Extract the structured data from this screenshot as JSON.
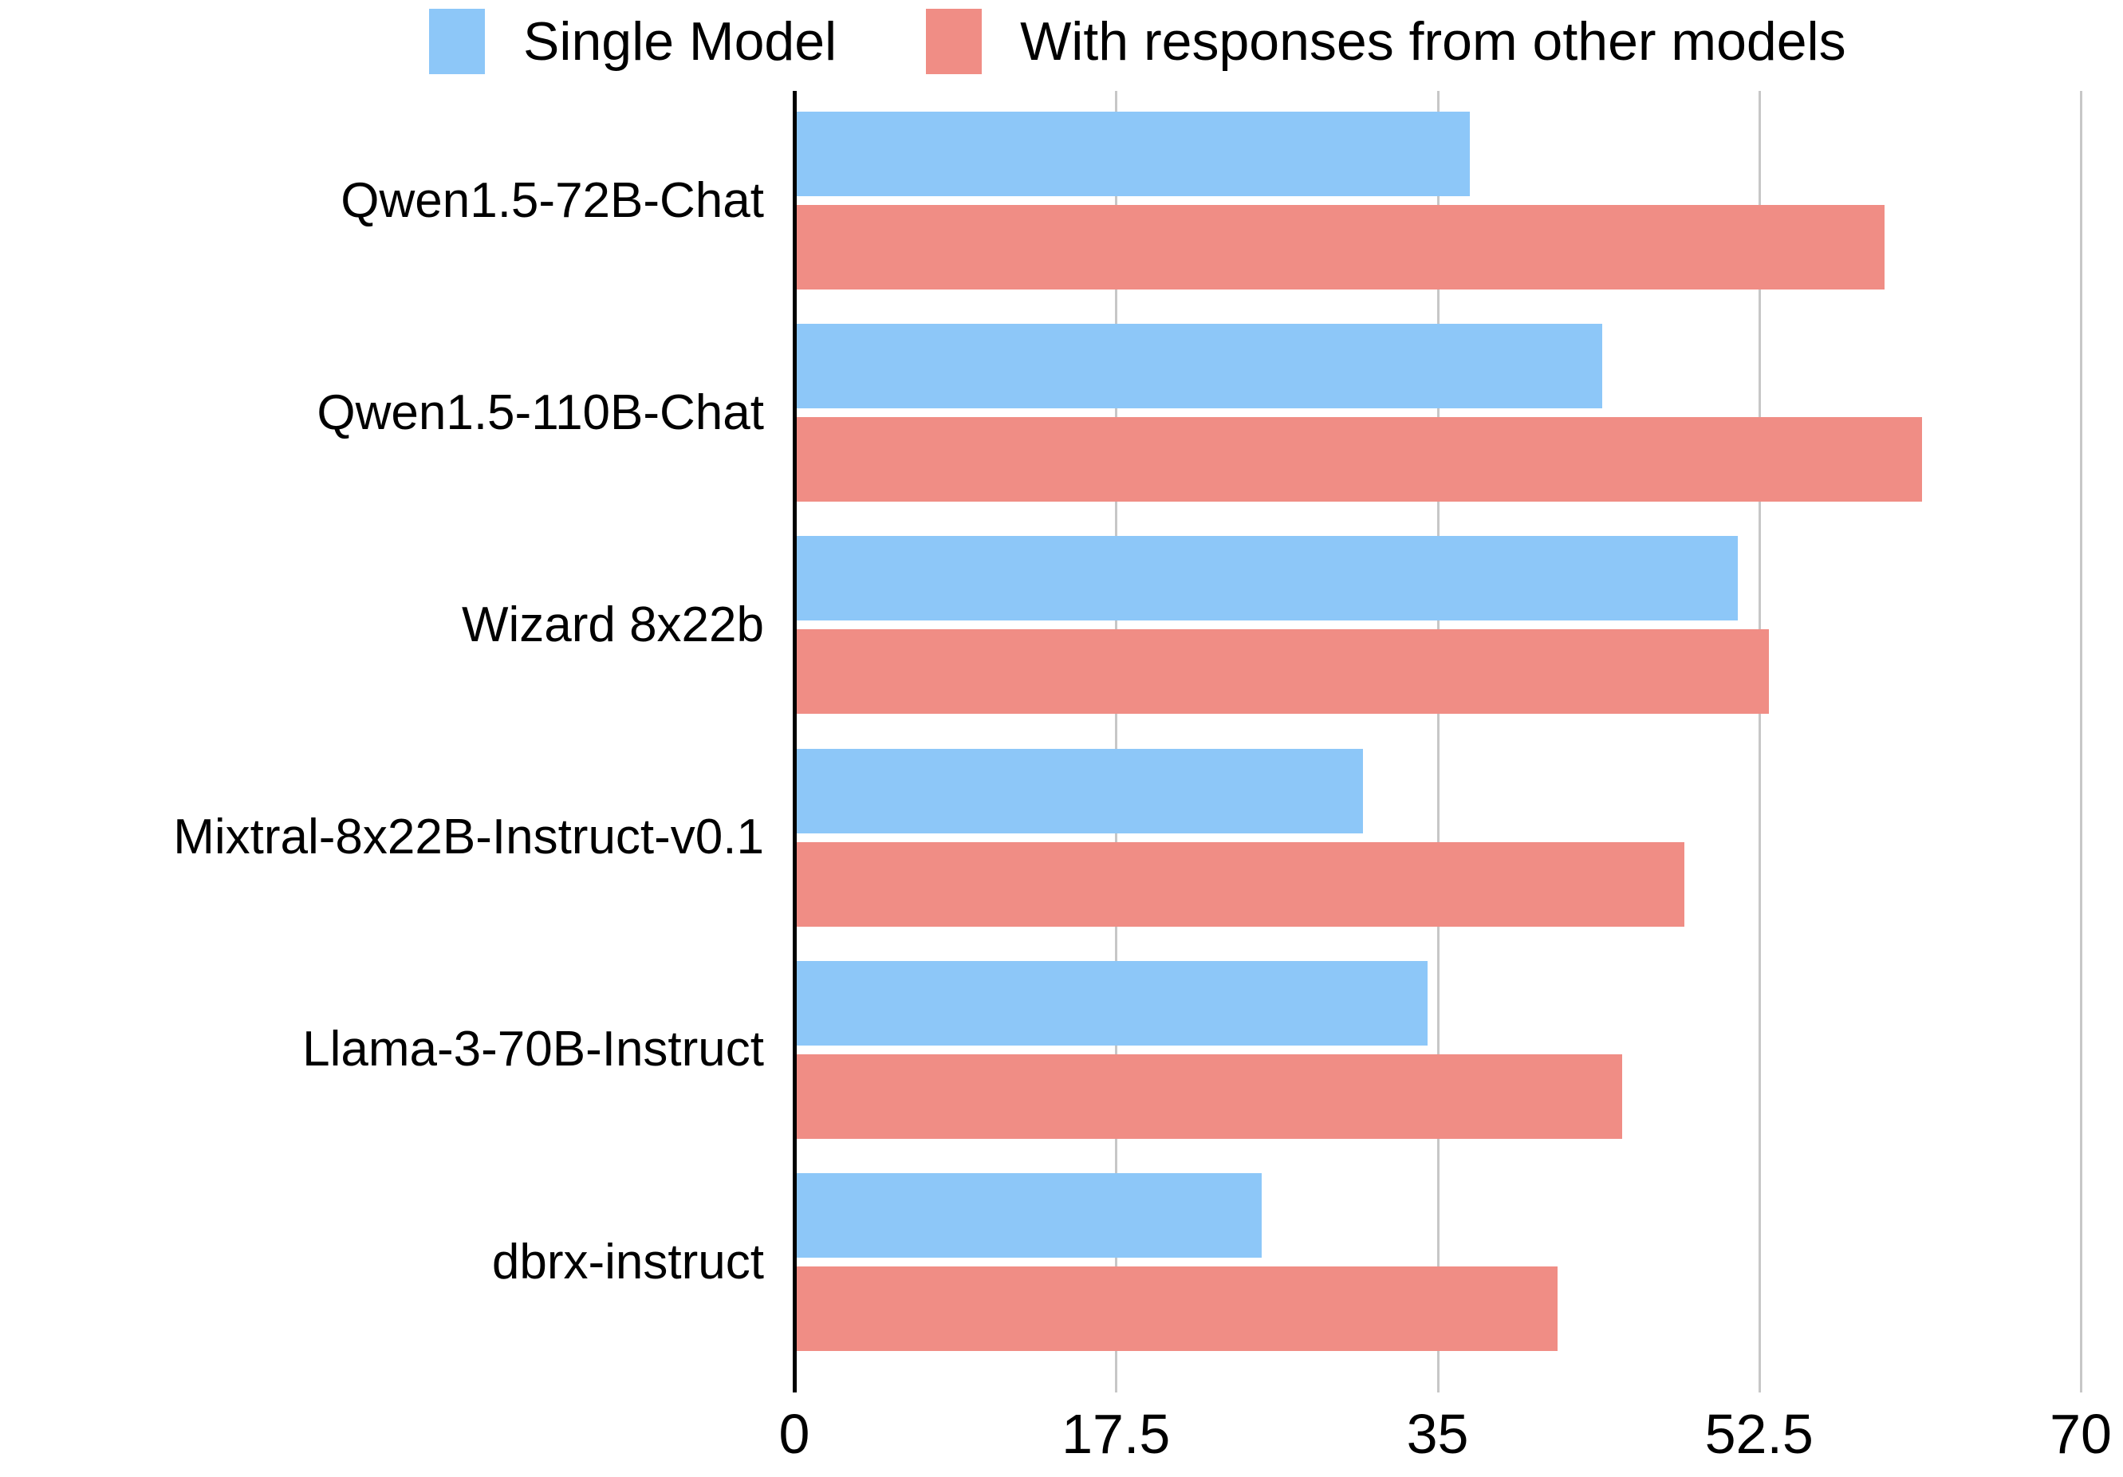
{
  "chart_data": {
    "type": "bar",
    "orientation": "horizontal",
    "title": "",
    "categories": [
      "Qwen1.5-72B-Chat",
      "Qwen1.5-110B-Chat",
      "Wizard 8x22b",
      "Mixtral-8x22B-Instruct-v0.1",
      "Llama-3-70B-Instruct",
      "dbrx-instruct"
    ],
    "series": [
      {
        "name": "Single Model",
        "color": "#8DC7F8",
        "values": [
          36.7,
          43.9,
          51.3,
          30.9,
          34.4,
          25.4
        ]
      },
      {
        "name": "With responses from other models",
        "color": "#F08D85",
        "values": [
          59.3,
          61.3,
          53.0,
          48.4,
          45.0,
          41.5
        ]
      }
    ],
    "x_ticks": [
      0,
      17.5,
      35,
      52.5,
      70
    ],
    "x_tick_labels": [
      "0",
      "17.5",
      "35",
      "52.5",
      "70"
    ],
    "xlim": [
      0,
      70
    ],
    "grid": "vertical-gridlines",
    "legend_position": "top"
  },
  "legend": {
    "items": [
      {
        "label": "Single Model"
      },
      {
        "label": "With responses from other models"
      }
    ]
  },
  "colors": {
    "single_model": "#8DC7F8",
    "with_responses": "#F08D85",
    "gridline": "#C7C7C7",
    "axis": "#000000",
    "text": "#000000"
  }
}
